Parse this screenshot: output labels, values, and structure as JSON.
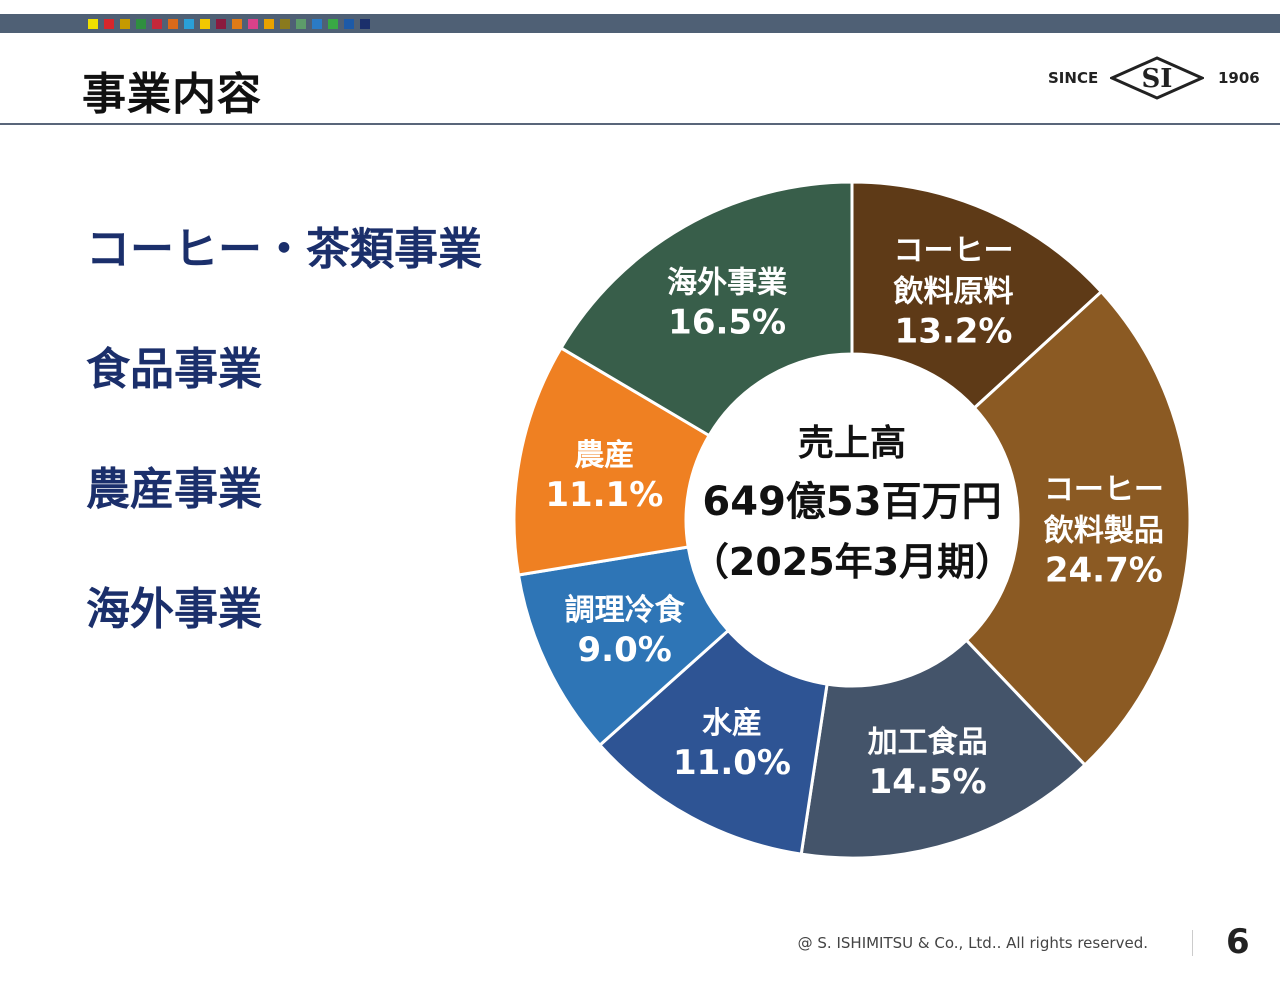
{
  "header": {
    "title": "事業内容",
    "color_squares": [
      "#f0e000",
      "#d8262b",
      "#c59a00",
      "#2f8f3f",
      "#c6283a",
      "#d96a1a",
      "#2aa0d8",
      "#f1c800",
      "#8b1a3e",
      "#e07b16",
      "#d9418a",
      "#e8a200",
      "#8a7a1e",
      "#5d9c6a",
      "#2b7bc5",
      "#39a845",
      "#1d5aa8",
      "#1b2f6b"
    ],
    "logo": {
      "since": "SINCE",
      "mark": "SI",
      "year": "1906"
    }
  },
  "businesses": [
    "コーヒー・茶類事業",
    "食品事業",
    "農産事業",
    "海外事業"
  ],
  "chart_data": {
    "type": "pie",
    "donut": true,
    "center_text": [
      "売上高",
      "649億53百万円",
      "（2025年3月期）"
    ],
    "slices": [
      {
        "label": [
          "コーヒー",
          "飲料原料"
        ],
        "value": 13.2,
        "value_label": "13.2%",
        "color": "#5e3a17"
      },
      {
        "label": [
          "コーヒー",
          "飲料製品"
        ],
        "value": 24.7,
        "value_label": "24.7%",
        "color": "#8b5a23"
      },
      {
        "label": [
          "加工食品"
        ],
        "value": 14.5,
        "value_label": "14.5%",
        "color": "#44546a"
      },
      {
        "label": [
          "水産"
        ],
        "value": 11.0,
        "value_label": "11.0%",
        "color": "#2e5494"
      },
      {
        "label": [
          "調理冷食"
        ],
        "value": 9.0,
        "value_label": "9.0%",
        "color": "#2e75b6"
      },
      {
        "label": [
          "農産"
        ],
        "value": 11.1,
        "value_label": "11.1%",
        "color": "#ef8022"
      },
      {
        "label": [
          "海外事業"
        ],
        "value": 16.5,
        "value_label": "16.5%",
        "color": "#385e4a"
      }
    ]
  },
  "footer": {
    "copyright": "@ S. ISHIMITSU & Co., Ltd.. All rights reserved.",
    "page_number": "6"
  }
}
